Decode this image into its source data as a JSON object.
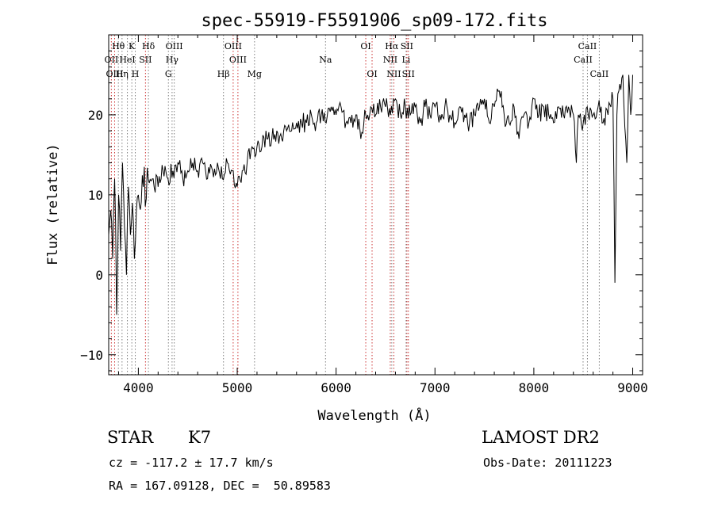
{
  "chart_data": {
    "type": "line",
    "title": "spec-55919-F5591906_sp09-172.fits",
    "xlabel": "Wavelength (Å)",
    "ylabel": "Flux (relative)",
    "xlim": [
      3700,
      9100
    ],
    "ylim": [
      -12.5,
      30
    ],
    "x_ticks": [
      4000,
      5000,
      6000,
      7000,
      8000,
      9000
    ],
    "y_ticks": [
      -10,
      0,
      10,
      20
    ],
    "grid": false,
    "series": [
      {
        "x": [
          3700,
          3720,
          3740,
          3760,
          3780,
          3800,
          3820,
          3840,
          3860,
          3880,
          3900,
          3920,
          3940,
          3960,
          3980,
          4000,
          4050,
          4100,
          4150,
          4200,
          4250,
          4300,
          4350,
          4400,
          4450,
          4500,
          4550,
          4600,
          4650,
          4700,
          4750,
          4800,
          4850,
          4900,
          4950,
          5000,
          5050,
          5100,
          5150,
          5200,
          5250,
          5300,
          5350,
          5400,
          5450,
          5500,
          5550,
          5600,
          5650,
          5700,
          5750,
          5800,
          5850,
          5900,
          5950,
          6000,
          6050,
          6100,
          6150,
          6200,
          6250,
          6300,
          6350,
          6400,
          6450,
          6500,
          6550,
          6600,
          6650,
          6700,
          6750,
          6800,
          6850,
          6900,
          6950,
          7000,
          7050,
          7100,
          7150,
          7200,
          7250,
          7300,
          7350,
          7400,
          7450,
          7500,
          7550,
          7600,
          7650,
          7700,
          7750,
          7800,
          7850,
          7900,
          7950,
          8000,
          8050,
          8100,
          8150,
          8200,
          8250,
          8300,
          8350,
          8400,
          8430,
          8450,
          8500,
          8540,
          8550,
          8600,
          8650,
          8700,
          8750,
          8800,
          8820,
          8840,
          8860,
          8900,
          8940,
          8960,
          8980,
          9000
        ],
        "y": [
          5,
          8,
          2,
          12,
          -5,
          10,
          3,
          14,
          6,
          0,
          11,
          5,
          9,
          2,
          8,
          10,
          11,
          12,
          12,
          11,
          13,
          12,
          13,
          14,
          12,
          13,
          14,
          13,
          14,
          12,
          13,
          14,
          12,
          14,
          13,
          11,
          13,
          14,
          16,
          16,
          16,
          17,
          17,
          18,
          17,
          18,
          18,
          19,
          19,
          19,
          20,
          19,
          20,
          19,
          21,
          20,
          21,
          19,
          19,
          20,
          17,
          20,
          21,
          20,
          21,
          21,
          20,
          22,
          20,
          21,
          20,
          21,
          19,
          21,
          20,
          21,
          20,
          21,
          20,
          19,
          21,
          20,
          19,
          20,
          21,
          22,
          19,
          21,
          23,
          20,
          19,
          21,
          17,
          20,
          19,
          22,
          20,
          21,
          20,
          19,
          21,
          20,
          21,
          20,
          14,
          20,
          19,
          21,
          20,
          20,
          21,
          19,
          20,
          22,
          -1,
          20,
          23,
          25,
          14,
          25,
          20,
          25
        ]
      }
    ],
    "line_labels": [
      {
        "text": "Hθ",
        "x": 3798,
        "row": 1,
        "color": "gray"
      },
      {
        "text": "K",
        "x": 3934,
        "row": 1,
        "color": "gray"
      },
      {
        "text": "Hδ",
        "x": 4102,
        "row": 1,
        "color": "gray"
      },
      {
        "text": "OIII",
        "x": 4363,
        "row": 1,
        "color": "gray"
      },
      {
        "text": "OIII",
        "x": 4959,
        "row": 1,
        "color": "red"
      },
      {
        "text": "OI",
        "x": 6300,
        "row": 1,
        "color": "red"
      },
      {
        "text": "Hα",
        "x": 6563,
        "row": 1,
        "color": "gray"
      },
      {
        "text": "SII",
        "x": 6716,
        "row": 1,
        "color": "red"
      },
      {
        "text": "CaII",
        "x": 8542,
        "row": 1,
        "color": "gray"
      },
      {
        "text": "OII",
        "x": 3727,
        "row": 2,
        "color": "red"
      },
      {
        "text": "HeI",
        "x": 3889,
        "row": 2,
        "color": "gray"
      },
      {
        "text": "SII",
        "x": 4072,
        "row": 2,
        "color": "red"
      },
      {
        "text": "Hγ",
        "x": 4341,
        "row": 2,
        "color": "gray"
      },
      {
        "text": "OIII",
        "x": 5007,
        "row": 2,
        "color": "red"
      },
      {
        "text": "Na",
        "x": 5893,
        "row": 2,
        "color": "gray"
      },
      {
        "text": "NII",
        "x": 6548,
        "row": 2,
        "color": "red"
      },
      {
        "text": "Li",
        "x": 6708,
        "row": 2,
        "color": "gray"
      },
      {
        "text": "CaII",
        "x": 8498,
        "row": 2,
        "color": "gray"
      },
      {
        "text": "OIII",
        "x": 3760,
        "row": 3,
        "color": "red"
      },
      {
        "text": "Hη",
        "x": 3835,
        "row": 3,
        "color": "gray"
      },
      {
        "text": "H",
        "x": 3969,
        "row": 3,
        "color": "gray"
      },
      {
        "text": "G",
        "x": 4304,
        "row": 3,
        "color": "gray"
      },
      {
        "text": "Hβ",
        "x": 4861,
        "row": 3,
        "color": "gray"
      },
      {
        "text": "Mg",
        "x": 5175,
        "row": 3,
        "color": "gray"
      },
      {
        "text": "OI",
        "x": 6364,
        "row": 3,
        "color": "red"
      },
      {
        "text": "NII",
        "x": 6584,
        "row": 3,
        "color": "red"
      },
      {
        "text": "SII",
        "x": 6731,
        "row": 3,
        "color": "red"
      },
      {
        "text": "CaII",
        "x": 8662,
        "row": 3,
        "color": "gray"
      }
    ],
    "line_colors": {
      "gray": "#7f7f7f",
      "red": "#cc3333",
      "flux": "#000000"
    }
  },
  "info": {
    "class_label": "STAR",
    "subclass": "K7",
    "survey": "LAMOST DR2",
    "cz": "cz = -117.2 ± 17.7 km/s",
    "obs_date": "Obs-Date: 20111223",
    "coords": "RA = 167.09128, DEC =  50.89583"
  }
}
